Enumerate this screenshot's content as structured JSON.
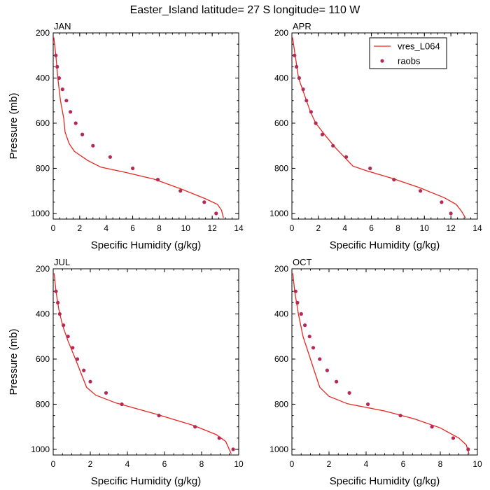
{
  "title": "Easter_Island  latitude= 27 S longitude= 110 W",
  "legend": {
    "items": [
      {
        "label": "vres_L064",
        "kind": "line",
        "color": "#e8261f"
      },
      {
        "label": "raobs",
        "kind": "marker",
        "color": "#b52a55"
      }
    ]
  },
  "chart_data": [
    {
      "type": "line",
      "panel": "JAN",
      "xlabel": "Specific Humidity (g/kg)",
      "ylabel": "Pressure (mb)",
      "xlim": [
        0,
        14
      ],
      "ylim": [
        1025,
        200
      ],
      "xticks": [
        0,
        2,
        4,
        6,
        8,
        10,
        12,
        14
      ],
      "yticks": [
        200,
        400,
        600,
        800,
        1000
      ],
      "y_inverted": true,
      "series": [
        {
          "name": "vres_L064",
          "kind": "line",
          "points": [
            [
              0.05,
              220
            ],
            [
              0.2,
              300
            ],
            [
              0.35,
              400
            ],
            [
              0.55,
              500
            ],
            [
              0.8,
              580
            ],
            [
              0.9,
              640
            ],
            [
              1.2,
              690
            ],
            [
              1.6,
              725
            ],
            [
              2.6,
              765
            ],
            [
              3.6,
              795
            ],
            [
              5.6,
              820
            ],
            [
              7.6,
              848
            ],
            [
              9.6,
              890
            ],
            [
              11.5,
              935
            ],
            [
              12.4,
              960
            ],
            [
              12.7,
              985
            ],
            [
              12.85,
              1020
            ]
          ]
        },
        {
          "name": "raobs",
          "kind": "scatter",
          "points": [
            [
              0.2,
              300
            ],
            [
              0.3,
              350
            ],
            [
              0.45,
              400
            ],
            [
              0.7,
              450
            ],
            [
              1.0,
              500
            ],
            [
              1.3,
              550
            ],
            [
              1.7,
              600
            ],
            [
              2.2,
              650
            ],
            [
              3.0,
              700
            ],
            [
              4.3,
              750
            ],
            [
              6.0,
              800
            ],
            [
              7.9,
              850
            ],
            [
              9.6,
              900
            ],
            [
              11.4,
              950
            ],
            [
              12.3,
              1000
            ]
          ]
        }
      ]
    },
    {
      "type": "line",
      "panel": "APR",
      "xlabel": "Specific Humidity (g/kg)",
      "ylabel": "",
      "xlim": [
        0,
        14
      ],
      "ylim": [
        1025,
        200
      ],
      "xticks": [
        0,
        2,
        4,
        6,
        8,
        10,
        12,
        14
      ],
      "yticks": [
        200,
        400,
        600,
        800,
        1000
      ],
      "y_inverted": true,
      "series": [
        {
          "name": "vres_L064",
          "kind": "line",
          "points": [
            [
              0.05,
              220
            ],
            [
              0.25,
              300
            ],
            [
              0.5,
              400
            ],
            [
              0.8,
              450
            ],
            [
              1.1,
              500
            ],
            [
              1.4,
              550
            ],
            [
              1.8,
              600
            ],
            [
              2.2,
              630
            ],
            [
              2.6,
              660
            ],
            [
              3.3,
              710
            ],
            [
              4.6,
              790
            ],
            [
              5.6,
              810
            ],
            [
              7.6,
              845
            ],
            [
              9.6,
              885
            ],
            [
              11.5,
              930
            ],
            [
              12.4,
              960
            ],
            [
              12.8,
              990
            ],
            [
              13.1,
              1020
            ]
          ]
        },
        {
          "name": "raobs",
          "kind": "scatter",
          "points": [
            [
              0.2,
              300
            ],
            [
              0.35,
              350
            ],
            [
              0.55,
              400
            ],
            [
              0.85,
              450
            ],
            [
              1.1,
              500
            ],
            [
              1.45,
              550
            ],
            [
              1.8,
              600
            ],
            [
              2.3,
              650
            ],
            [
              3.1,
              700
            ],
            [
              4.1,
              750
            ],
            [
              5.9,
              800
            ],
            [
              7.7,
              850
            ],
            [
              9.7,
              900
            ],
            [
              11.3,
              950
            ],
            [
              12.0,
              1000
            ]
          ]
        }
      ]
    },
    {
      "type": "line",
      "panel": "JUL",
      "xlabel": "Specific Humidity (g/kg)",
      "ylabel": "Pressure (mb)",
      "xlim": [
        0,
        10
      ],
      "ylim": [
        1025,
        200
      ],
      "xticks": [
        0,
        2,
        4,
        6,
        8,
        10
      ],
      "yticks": [
        200,
        400,
        600,
        800,
        1000
      ],
      "y_inverted": true,
      "series": [
        {
          "name": "vres_L064",
          "kind": "line",
          "points": [
            [
              0.05,
              220
            ],
            [
              0.15,
              300
            ],
            [
              0.3,
              380
            ],
            [
              0.5,
              450
            ],
            [
              0.8,
              520
            ],
            [
              1.2,
              600
            ],
            [
              1.8,
              725
            ],
            [
              2.3,
              760
            ],
            [
              3.4,
              795
            ],
            [
              5.6,
              845
            ],
            [
              7.6,
              895
            ],
            [
              8.8,
              935
            ],
            [
              9.3,
              965
            ],
            [
              9.6,
              1020
            ]
          ]
        },
        {
          "name": "raobs",
          "kind": "scatter",
          "points": [
            [
              0.15,
              300
            ],
            [
              0.25,
              350
            ],
            [
              0.35,
              400
            ],
            [
              0.55,
              450
            ],
            [
              0.8,
              500
            ],
            [
              1.05,
              550
            ],
            [
              1.3,
              600
            ],
            [
              1.65,
              650
            ],
            [
              2.0,
              700
            ],
            [
              2.85,
              750
            ],
            [
              3.7,
              800
            ],
            [
              5.7,
              850
            ],
            [
              7.65,
              900
            ],
            [
              8.95,
              950
            ],
            [
              9.7,
              1000
            ]
          ]
        }
      ]
    },
    {
      "type": "line",
      "panel": "OCT",
      "xlabel": "Specific Humidity (g/kg)",
      "ylabel": "",
      "xlim": [
        0,
        10
      ],
      "ylim": [
        1025,
        200
      ],
      "xticks": [
        0,
        2,
        4,
        6,
        8,
        10
      ],
      "yticks": [
        200,
        400,
        600,
        800,
        1000
      ],
      "y_inverted": true,
      "series": [
        {
          "name": "vres_L064",
          "kind": "line",
          "points": [
            [
              0.05,
              220
            ],
            [
              0.15,
              300
            ],
            [
              0.35,
              400
            ],
            [
              0.6,
              500
            ],
            [
              1.0,
              600
            ],
            [
              1.5,
              725
            ],
            [
              2.0,
              765
            ],
            [
              3.0,
              798
            ],
            [
              5.0,
              830
            ],
            [
              6.6,
              865
            ],
            [
              8.0,
              905
            ],
            [
              9.0,
              950
            ],
            [
              9.4,
              980
            ],
            [
              9.55,
              1020
            ]
          ]
        },
        {
          "name": "raobs",
          "kind": "scatter",
          "points": [
            [
              0.2,
              300
            ],
            [
              0.3,
              350
            ],
            [
              0.5,
              400
            ],
            [
              0.7,
              450
            ],
            [
              0.95,
              500
            ],
            [
              1.15,
              550
            ],
            [
              1.5,
              600
            ],
            [
              1.9,
              650
            ],
            [
              2.4,
              700
            ],
            [
              3.1,
              750
            ],
            [
              4.1,
              800
            ],
            [
              5.85,
              850
            ],
            [
              7.55,
              900
            ],
            [
              8.7,
              950
            ],
            [
              9.5,
              1000
            ]
          ]
        }
      ]
    }
  ]
}
